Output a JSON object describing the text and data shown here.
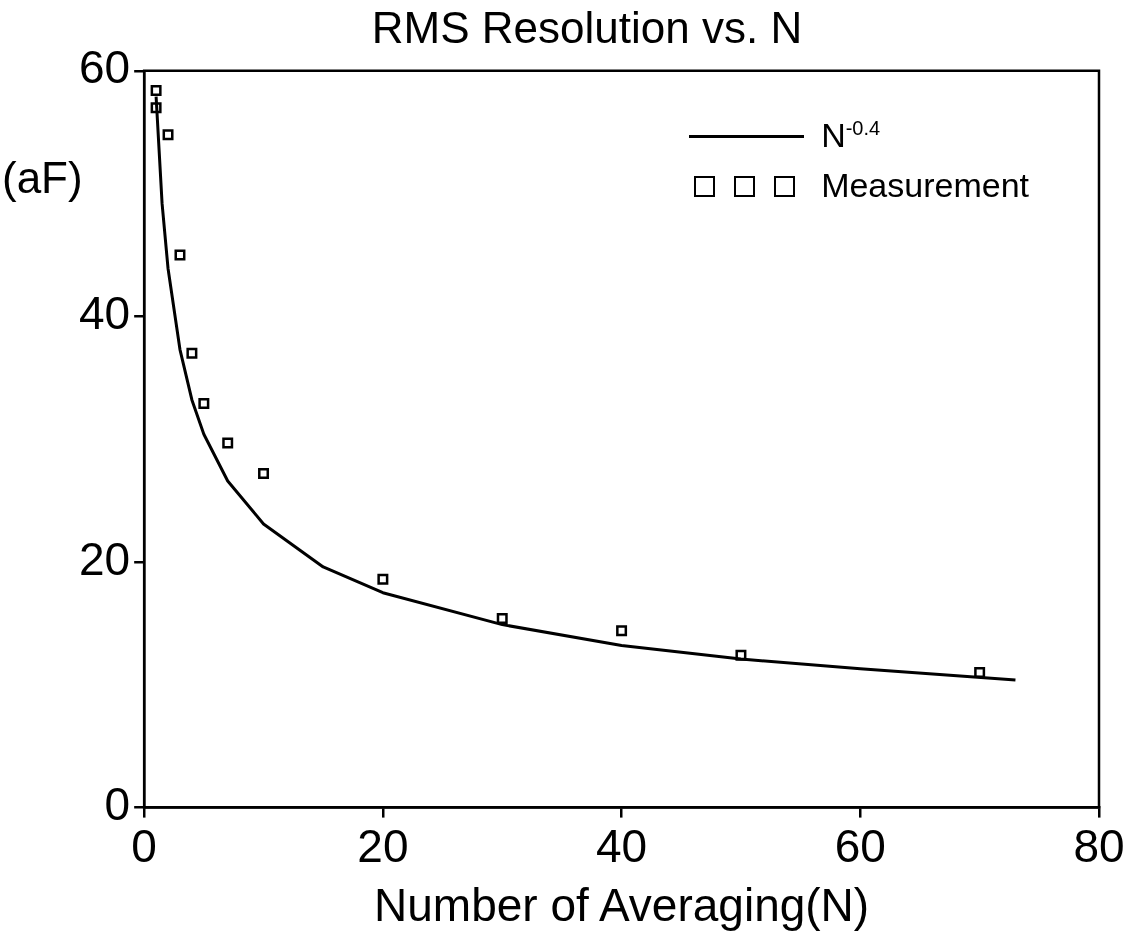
{
  "chart_data": {
    "type": "scatter",
    "title": "RMS Resolution vs. N",
    "xlabel": "Number of Averaging(N)",
    "ylabel": "(aF)",
    "xlim": [
      0,
      80
    ],
    "xticks": [
      0,
      20,
      40,
      60,
      80
    ],
    "ylim": [
      0,
      60
    ],
    "yticks": [
      0,
      20,
      40,
      60
    ],
    "grid": false,
    "legend": "top right",
    "series": [
      {
        "name": "N$^{-0.4}$",
        "type": "line",
        "color": "#000000",
        "marker": "none",
        "line_style": "solid",
        "x": [
          1,
          1.5,
          2,
          3,
          4,
          5,
          7,
          10,
          15,
          20,
          30,
          40,
          50,
          60,
          73
        ],
        "values": [
          57.9,
          49.2,
          43.9,
          37.3,
          33.2,
          30.4,
          26.6,
          23.1,
          19.6,
          17.5,
          14.9,
          13.2,
          12.1,
          11.3,
          10.4
        ]
      },
      {
        "name": "Measurement",
        "color": "#000000",
        "marker": "square",
        "x": [
          1,
          1,
          2,
          3,
          4,
          5,
          7,
          10,
          20,
          30,
          40,
          50,
          70
        ],
        "values": [
          58.4,
          57.0,
          54.8,
          45.0,
          37.0,
          32.9,
          29.7,
          27.2,
          18.6,
          15.4,
          14.4,
          12.4,
          11.0
        ]
      }
    ]
  }
}
